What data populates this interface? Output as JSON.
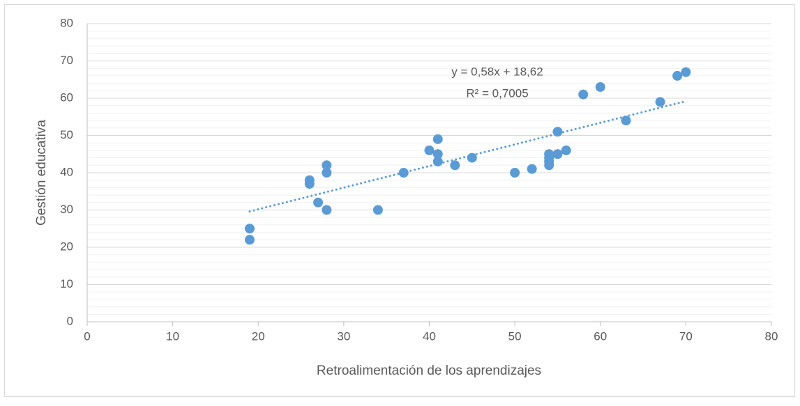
{
  "chart_data": {
    "type": "scatter",
    "xlabel": "Retroalimentación de los aprendizajes",
    "ylabel": "Gestión educativa",
    "x": [
      19,
      19,
      26,
      26,
      27,
      28,
      28,
      28,
      34,
      37,
      40,
      41,
      41,
      41,
      43,
      45,
      50,
      52,
      54,
      54,
      54,
      54,
      55,
      55,
      56,
      58,
      60,
      63,
      67,
      69,
      70
    ],
    "values": [
      25,
      22,
      38,
      37,
      32,
      42,
      40,
      30,
      30,
      40,
      46,
      49,
      45,
      43,
      42,
      44,
      40,
      41,
      45,
      44,
      43,
      42,
      51,
      45,
      46,
      61,
      63,
      54,
      59,
      66,
      67
    ],
    "color": "#5b9bd5",
    "trendline": {
      "x": [
        19,
        70
      ],
      "values": [
        29.6,
        59.2
      ],
      "color": "#5b9bd5"
    },
    "annotations": [
      "y = 0,58x + 18,62",
      "R² = 0,7005"
    ],
    "xlim": [
      0,
      80
    ],
    "xticks": [
      0,
      10,
      20,
      30,
      40,
      50,
      60,
      70,
      80
    ],
    "ylim": [
      0,
      80
    ],
    "yticks": [
      0,
      10,
      20,
      30,
      40,
      50,
      60,
      70,
      80
    ],
    "grid": true,
    "minor_grid": true
  }
}
